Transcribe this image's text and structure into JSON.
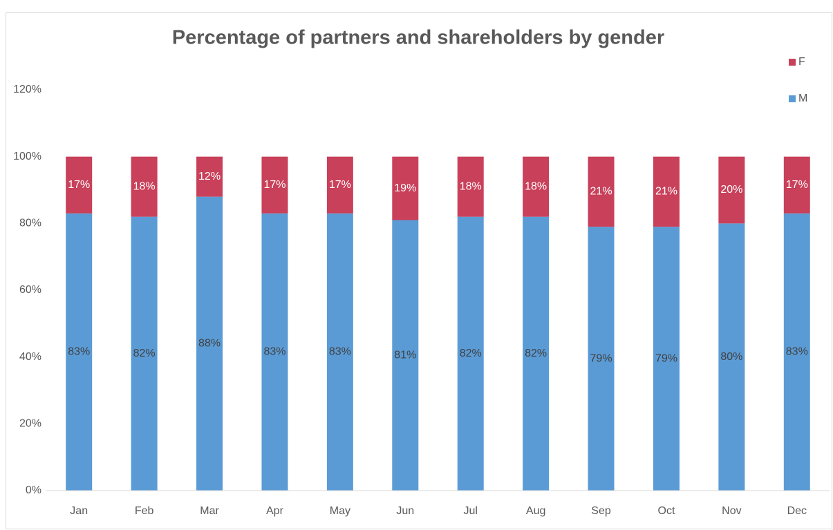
{
  "chart_data": {
    "type": "stacked_bar",
    "title": "Percentage of partners and shareholders by gender",
    "categories": [
      "Jan",
      "Feb",
      "Mar",
      "Apr",
      "May",
      "Jun",
      "Jul",
      "Aug",
      "Sep",
      "Oct",
      "Nov",
      "Dec"
    ],
    "series": [
      {
        "name": "M",
        "color": "#5b9bd5",
        "values": [
          83,
          82,
          88,
          83,
          83,
          81,
          82,
          82,
          79,
          79,
          80,
          83
        ],
        "value_labels": [
          "83%",
          "82%",
          "88%",
          "83%",
          "83%",
          "81%",
          "82%",
          "82%",
          "79%",
          "79%",
          "80%",
          "83%"
        ]
      },
      {
        "name": "F",
        "color": "#c9405a",
        "values": [
          17,
          18,
          12,
          17,
          17,
          19,
          18,
          18,
          21,
          21,
          20,
          17
        ],
        "value_labels": [
          "17%",
          "18%",
          "12%",
          "17%",
          "17%",
          "19%",
          "18%",
          "18%",
          "21%",
          "21%",
          "20%",
          "17%"
        ]
      }
    ],
    "ylim": [
      0,
      120
    ],
    "yticks": [
      {
        "value": 0,
        "label": "0%"
      },
      {
        "value": 20,
        "label": "20%"
      },
      {
        "value": 40,
        "label": "40%"
      },
      {
        "value": 60,
        "label": "60%"
      },
      {
        "value": 80,
        "label": "80%"
      },
      {
        "value": 100,
        "label": "100%"
      },
      {
        "value": 120,
        "label": "120%"
      }
    ],
    "grid": false,
    "legend": "top-right"
  }
}
